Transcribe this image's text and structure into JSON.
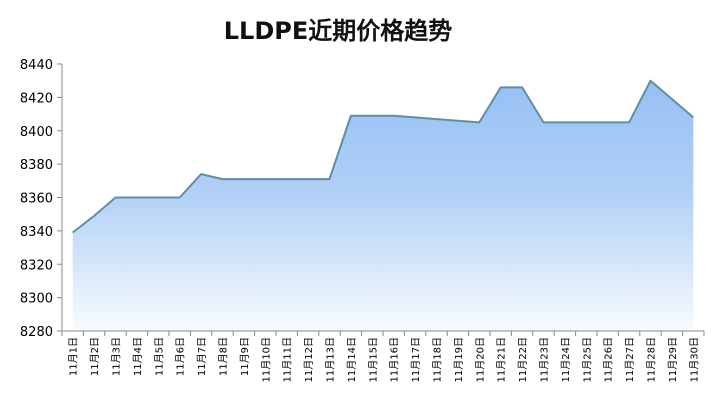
{
  "chart_data": {
    "type": "area",
    "title": "LLDPE近期价格趋势",
    "xlabel": "",
    "ylabel": "",
    "ylim": [
      8280,
      8440
    ],
    "yticks": [
      8280,
      8300,
      8320,
      8340,
      8360,
      8380,
      8400,
      8420,
      8440
    ],
    "grid": false,
    "legend": "none",
    "categories": [
      "11月1日",
      "11月2日",
      "11月3日",
      "11月4日",
      "11月5日",
      "11月6日",
      "11月7日",
      "11月8日",
      "11月9日",
      "11月10日",
      "11月11日",
      "11月12日",
      "11月13日",
      "11月14日",
      "11月15日",
      "11月16日",
      "11月17日",
      "11月18日",
      "11月19日",
      "11月20日",
      "11月21日",
      "11月22日",
      "11月23日",
      "11月24日",
      "11月25日",
      "11月26日",
      "11月27日",
      "11月28日",
      "11月29日",
      "11月30日"
    ],
    "values": [
      8339,
      8349,
      8360,
      8360,
      8360,
      8360,
      8374,
      8371,
      8371,
      8371,
      8371,
      8371,
      8371,
      8409,
      8409,
      8409,
      8408,
      8407,
      8406,
      8405,
      8426,
      8426,
      8405,
      8405,
      8405,
      8405,
      8405,
      8430,
      8419,
      8408
    ],
    "colors": {
      "line": "#5f8fa2",
      "fill_top": "#96c0f4",
      "fill_bottom": "#f8fbfe",
      "axis": "#8a8a8a"
    }
  }
}
